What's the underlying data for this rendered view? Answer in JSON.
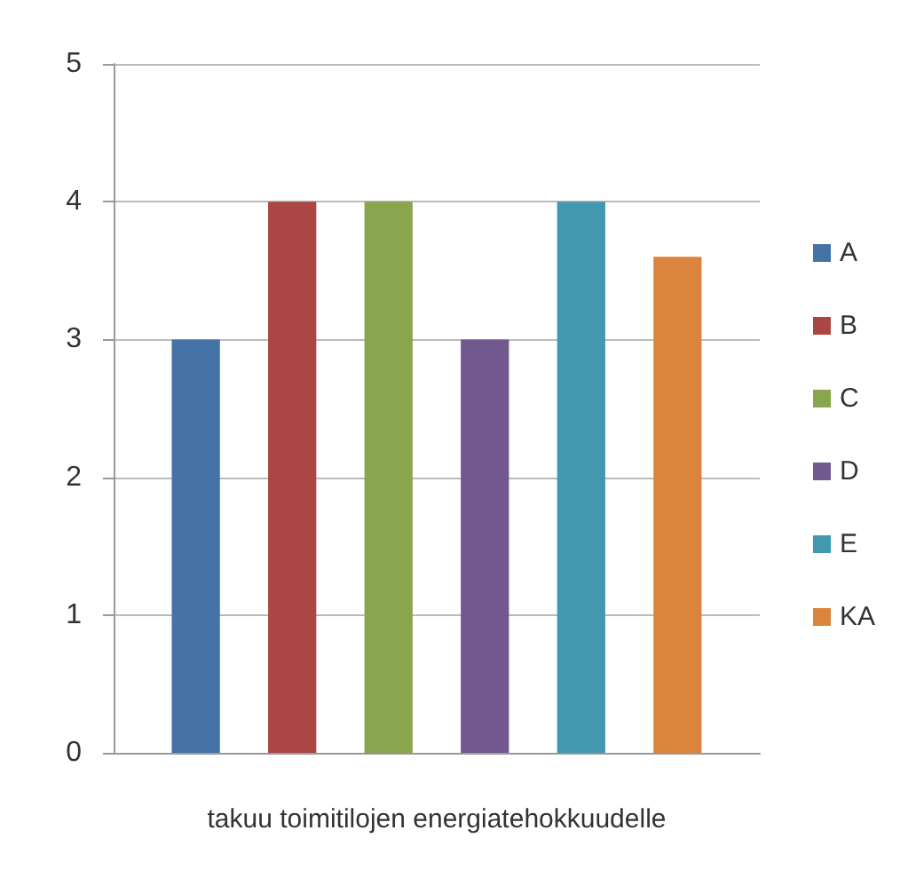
{
  "chart_data": {
    "type": "bar",
    "categories": [
      "takuu toimitilojen energiatehokkuudelle"
    ],
    "series": [
      {
        "name": "A",
        "color": "#4572a7",
        "values": [
          3
        ]
      },
      {
        "name": "B",
        "color": "#aa4643",
        "values": [
          4
        ]
      },
      {
        "name": "C",
        "color": "#89a54e",
        "values": [
          4
        ]
      },
      {
        "name": "D",
        "color": "#71588f",
        "values": [
          3
        ]
      },
      {
        "name": "E",
        "color": "#4198af",
        "values": [
          4
        ]
      },
      {
        "name": "KA",
        "color": "#db843d",
        "values": [
          3.6
        ]
      }
    ],
    "ylim": [
      0,
      5
    ],
    "yticks": [
      0,
      1,
      2,
      3,
      4,
      5
    ],
    "grid": "y",
    "legend": "right"
  }
}
